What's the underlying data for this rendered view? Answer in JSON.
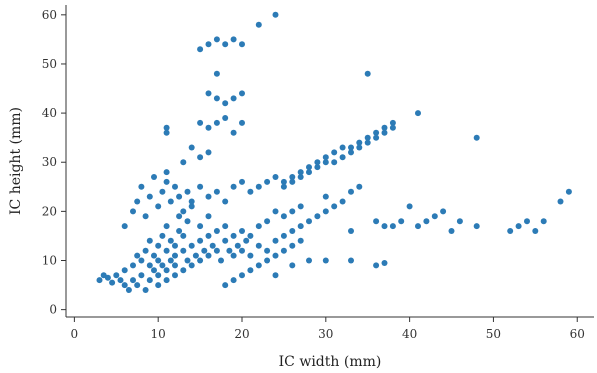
{
  "chart_data": {
    "type": "scatter",
    "xlabel": "IC width (mm)",
    "ylabel": "IC height (mm)",
    "xlim": [
      -1,
      62
    ],
    "ylim": [
      -1.5,
      62
    ],
    "xticks": [
      0,
      10,
      20,
      30,
      40,
      50,
      60
    ],
    "yticks": [
      0,
      10,
      20,
      30,
      40,
      50,
      60
    ],
    "grid": false,
    "point_color": "#2c7bb6",
    "series": [
      {
        "points": [
          [
            3,
            6
          ],
          [
            3.5,
            7
          ],
          [
            4,
            6.5
          ],
          [
            4.5,
            5.5
          ],
          [
            5,
            7
          ],
          [
            5.5,
            6
          ],
          [
            6,
            5
          ],
          [
            6,
            8
          ],
          [
            6.5,
            4
          ],
          [
            7,
            6
          ],
          [
            7,
            9
          ],
          [
            7.5,
            5
          ],
          [
            7.5,
            11
          ],
          [
            8,
            7
          ],
          [
            8,
            10
          ],
          [
            8.5,
            4
          ],
          [
            8.5,
            12
          ],
          [
            9,
            6
          ],
          [
            9,
            9
          ],
          [
            9,
            14
          ],
          [
            9.5,
            8
          ],
          [
            9.5,
            11
          ],
          [
            10,
            5
          ],
          [
            10,
            7
          ],
          [
            10,
            10
          ],
          [
            10,
            13
          ],
          [
            10.5,
            9
          ],
          [
            10.5,
            15
          ],
          [
            11,
            6
          ],
          [
            11,
            8
          ],
          [
            11,
            12
          ],
          [
            11,
            17
          ],
          [
            11.5,
            10
          ],
          [
            11.5,
            14
          ],
          [
            12,
            7
          ],
          [
            12,
            9
          ],
          [
            12,
            11
          ],
          [
            12,
            13
          ],
          [
            12.5,
            16
          ],
          [
            12.5,
            19
          ],
          [
            13,
            8
          ],
          [
            13,
            12
          ],
          [
            13,
            15
          ],
          [
            13.5,
            10
          ],
          [
            13.5,
            18
          ],
          [
            14,
            9
          ],
          [
            14,
            13
          ],
          [
            14,
            21
          ],
          [
            14.5,
            11
          ],
          [
            15,
            10
          ],
          [
            15,
            14
          ],
          [
            15,
            17
          ],
          [
            15.5,
            12
          ],
          [
            16,
            11
          ],
          [
            16,
            15
          ],
          [
            16,
            19
          ],
          [
            16.5,
            13
          ],
          [
            17,
            12
          ],
          [
            17,
            16
          ],
          [
            17.5,
            10
          ],
          [
            18,
            14
          ],
          [
            18,
            17
          ],
          [
            18.5,
            12
          ],
          [
            19,
            11
          ],
          [
            19,
            15
          ],
          [
            19.5,
            13
          ],
          [
            20,
            12
          ],
          [
            20,
            16
          ],
          [
            20.5,
            14
          ],
          [
            21,
            11
          ],
          [
            21,
            15
          ],
          [
            22,
            13
          ],
          [
            22,
            17
          ],
          [
            23,
            12
          ],
          [
            23,
            18
          ],
          [
            24,
            14
          ],
          [
            24,
            20
          ],
          [
            25,
            15
          ],
          [
            25,
            19
          ],
          [
            26,
            16
          ],
          [
            26,
            20
          ],
          [
            27,
            17
          ],
          [
            27,
            21
          ],
          [
            28,
            18
          ],
          [
            29,
            19
          ],
          [
            30,
            20
          ],
          [
            30,
            23
          ],
          [
            31,
            21
          ],
          [
            32,
            22
          ],
          [
            33,
            24
          ],
          [
            34,
            25
          ],
          [
            6,
            17
          ],
          [
            7,
            20
          ],
          [
            7.5,
            22
          ],
          [
            8,
            25
          ],
          [
            8.5,
            19
          ],
          [
            9,
            23
          ],
          [
            9.5,
            27
          ],
          [
            10,
            21
          ],
          [
            10.5,
            24
          ],
          [
            11,
            26
          ],
          [
            11.5,
            22
          ],
          [
            12,
            25
          ],
          [
            12.5,
            23
          ],
          [
            13,
            20
          ],
          [
            13.5,
            24
          ],
          [
            14,
            22
          ],
          [
            15,
            25
          ],
          [
            16,
            23
          ],
          [
            17,
            24
          ],
          [
            18,
            22
          ],
          [
            19,
            25
          ],
          [
            20,
            26
          ],
          [
            21,
            24
          ],
          [
            22,
            25
          ],
          [
            23,
            26
          ],
          [
            24,
            27
          ],
          [
            25,
            25
          ],
          [
            26,
            27
          ],
          [
            27,
            28
          ],
          [
            28,
            29
          ],
          [
            29,
            30
          ],
          [
            30,
            31
          ],
          [
            31,
            32
          ],
          [
            32,
            33
          ],
          [
            33,
            33
          ],
          [
            34,
            34
          ],
          [
            35,
            35
          ],
          [
            36,
            36
          ],
          [
            37,
            37
          ],
          [
            38,
            38
          ],
          [
            38,
            37
          ],
          [
            37,
            36
          ],
          [
            36,
            35
          ],
          [
            35,
            34
          ],
          [
            34,
            33
          ],
          [
            33,
            32
          ],
          [
            32,
            31
          ],
          [
            31,
            30
          ],
          [
            30,
            30
          ],
          [
            29,
            29
          ],
          [
            28,
            28
          ],
          [
            27,
            27
          ],
          [
            26,
            26
          ],
          [
            25,
            26
          ],
          [
            18,
            5
          ],
          [
            19,
            6
          ],
          [
            20,
            7
          ],
          [
            21,
            8
          ],
          [
            22,
            9
          ],
          [
            23,
            10
          ],
          [
            24,
            11
          ],
          [
            25,
            12
          ],
          [
            26,
            13
          ],
          [
            27,
            14
          ],
          [
            24,
            7
          ],
          [
            26,
            9
          ],
          [
            28,
            10
          ],
          [
            30,
            10
          ],
          [
            33,
            10
          ],
          [
            36,
            9
          ],
          [
            37,
            9.5
          ],
          [
            33,
            16
          ],
          [
            36,
            18
          ],
          [
            37,
            17
          ],
          [
            38,
            17
          ],
          [
            39,
            18
          ],
          [
            40,
            21
          ],
          [
            41,
            17
          ],
          [
            42,
            18
          ],
          [
            43,
            19
          ],
          [
            44,
            20
          ],
          [
            45,
            16
          ],
          [
            46,
            18
          ],
          [
            48,
            17
          ],
          [
            52,
            16
          ],
          [
            53,
            17
          ],
          [
            54,
            18
          ],
          [
            55,
            16
          ],
          [
            56,
            18
          ],
          [
            58,
            22
          ],
          [
            59,
            24
          ],
          [
            48,
            35
          ],
          [
            41,
            40
          ],
          [
            35,
            48
          ],
          [
            15,
            53
          ],
          [
            16,
            54
          ],
          [
            17,
            55
          ],
          [
            18,
            54
          ],
          [
            19,
            55
          ],
          [
            20,
            54
          ],
          [
            22,
            58
          ],
          [
            24,
            60
          ],
          [
            16,
            44
          ],
          [
            17,
            43
          ],
          [
            18,
            42
          ],
          [
            19,
            43
          ],
          [
            20,
            44
          ],
          [
            17,
            48
          ],
          [
            15,
            38
          ],
          [
            16,
            37
          ],
          [
            17,
            38
          ],
          [
            18,
            39
          ],
          [
            19,
            36
          ],
          [
            20,
            38
          ],
          [
            14,
            33
          ],
          [
            15,
            31
          ],
          [
            16,
            32
          ],
          [
            11,
            36
          ],
          [
            11,
            37
          ],
          [
            13,
            30
          ],
          [
            11,
            28
          ]
        ]
      }
    ]
  }
}
